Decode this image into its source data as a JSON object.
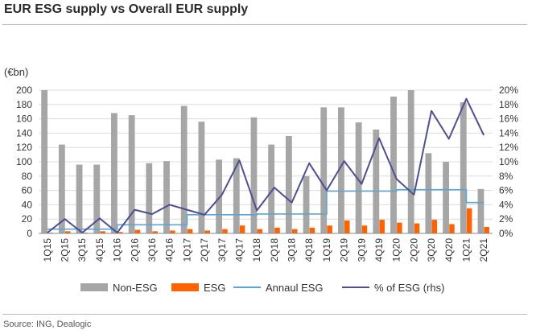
{
  "title": "EUR ESG supply vs Overall EUR supply",
  "source": "Source: ING, Dealogic",
  "colors": {
    "non_esg": "#a6a6a6",
    "esg": "#ff6200",
    "annual": "#5ba5d6",
    "pct": "#4f4f8f",
    "grid": "#dcdcdc",
    "axis": "#8a8a8a"
  },
  "chart_data": {
    "type": "bar",
    "categories": [
      "1Q15",
      "2Q15",
      "3Q15",
      "4Q15",
      "1Q16",
      "2Q16",
      "3Q16",
      "4Q16",
      "1Q17",
      "2Q17",
      "3Q17",
      "4Q17",
      "1Q18",
      "2Q18",
      "3Q18",
      "4Q18",
      "1Q19",
      "2Q19",
      "3Q19",
      "4Q19",
      "1Q20",
      "2Q20",
      "3Q20",
      "4Q20",
      "1Q21",
      "2Q21"
    ],
    "y_left": {
      "unit": "(€bn)",
      "min": 0,
      "max": 200,
      "step": 20
    },
    "y_right": {
      "min": 0,
      "max": 20,
      "step": 2,
      "suffix": "%"
    },
    "series": [
      {
        "name": "Non-ESG",
        "type": "bar",
        "axis": "left",
        "values": [
          200,
          124,
          96,
          96,
          168,
          165,
          98,
          101,
          178,
          156,
          103,
          105,
          162,
          124,
          136,
          80,
          176,
          176,
          155,
          145,
          191,
          200,
          112,
          100,
          183,
          62
        ]
      },
      {
        "name": "ESG",
        "type": "bar",
        "axis": "left",
        "values": [
          1,
          3,
          1,
          3,
          2,
          5,
          3,
          4,
          6,
          4,
          6,
          11,
          6,
          8,
          6,
          8,
          11,
          18,
          11,
          19,
          15,
          14,
          19,
          13,
          35,
          9
        ]
      },
      {
        "name": "Annaul ESG",
        "type": "line",
        "axis": "left",
        "values": [
          6,
          6,
          6,
          6,
          12,
          12,
          12,
          12,
          26,
          26,
          26,
          26,
          27,
          27,
          27,
          27,
          59,
          59,
          59,
          59,
          61,
          61,
          61,
          61,
          43,
          43
        ]
      },
      {
        "name": "% of ESG (rhs)",
        "type": "line",
        "axis": "right",
        "values": [
          0.1,
          2.0,
          0.1,
          2.1,
          0.1,
          3.3,
          2.7,
          4.0,
          3.3,
          2.6,
          5.4,
          10.2,
          3.2,
          6.4,
          4.3,
          9.8,
          6.0,
          10.1,
          6.9,
          13.3,
          7.6,
          5.4,
          17.1,
          13.2,
          18.8,
          13.7
        ]
      }
    ],
    "legend_position": "bottom",
    "grid": true
  }
}
